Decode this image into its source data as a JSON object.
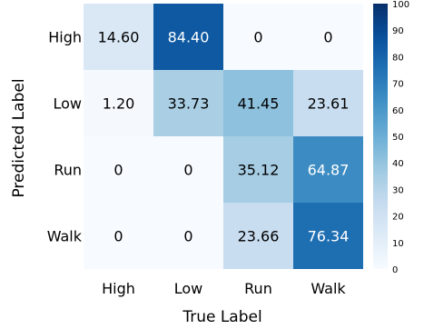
{
  "chart_data": {
    "type": "heatmap",
    "xlabel": "True Label",
    "ylabel": "Predicted Label",
    "x_categories": [
      "High",
      "Low",
      "Run",
      "Walk"
    ],
    "y_categories": [
      "High",
      "Low",
      "Run",
      "Walk"
    ],
    "values": [
      [
        14.6,
        84.4,
        0,
        0
      ],
      [
        1.2,
        33.73,
        41.45,
        23.61
      ],
      [
        0,
        0,
        35.12,
        64.87
      ],
      [
        0,
        0,
        23.66,
        76.34
      ]
    ],
    "labels": [
      [
        "14.60",
        "84.40",
        "0",
        "0"
      ],
      [
        "1.20",
        "33.73",
        "41.45",
        "23.61"
      ],
      [
        "0",
        "0",
        "35.12",
        "64.87"
      ],
      [
        "0",
        "0",
        "23.66",
        "76.34"
      ]
    ],
    "colorbar": {
      "range": [
        0,
        100
      ],
      "ticks": [
        "0",
        "10",
        "20",
        "30",
        "40",
        "50",
        "60",
        "70",
        "80",
        "90",
        "100"
      ],
      "colormap": "Blues"
    }
  }
}
